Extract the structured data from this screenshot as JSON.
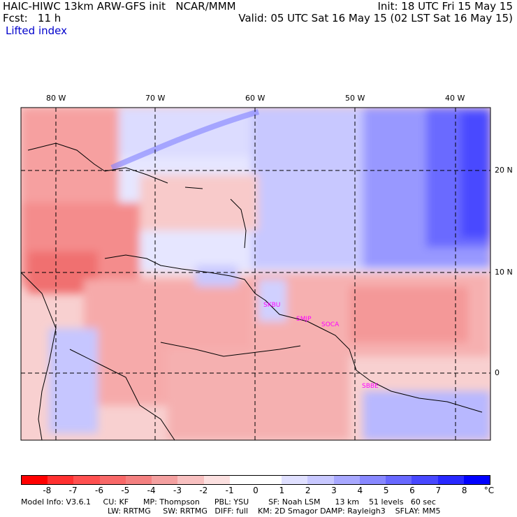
{
  "header": {
    "model": "HAIC-HIWC 13km ARW-GFS init   NCAR/MMM",
    "init": "Init: 18 UTC Fri 15 May 15",
    "fcst": "Fcst:   11 h",
    "valid": "Valid: 05 UTC Sat 16 May 15 (02 LST Sat 16 May 15)",
    "field": "Lifted index"
  },
  "map": {
    "lon_labels": [
      "80 W",
      "70 W",
      "60 W",
      "50 W",
      "40 W"
    ],
    "lat_labels": [
      "20 N",
      "10 N",
      "0"
    ],
    "stations": [
      "SKBU",
      "SMJP",
      "SOCA",
      "SBBE"
    ]
  },
  "colorbar": {
    "labels": [
      "-8",
      "-7",
      "-6",
      "-5",
      "-4",
      "-3",
      "-2",
      "-1",
      "0",
      "1",
      "2",
      "3",
      "4",
      "5",
      "6",
      "7",
      "8"
    ],
    "unit": "°C",
    "colors": [
      "#ff0000",
      "#ff2020",
      "#ff4040",
      "#f86060",
      "#f08080",
      "#f0a0a0",
      "#f8c0c0",
      "#fce0e0",
      "#ffffff",
      "#e0e0ff",
      "#c0c0ff",
      "#a0a0ff",
      "#8080ff",
      "#6060ff",
      "#4040ff",
      "#2020ff",
      "#0000ff"
    ]
  },
  "footer": {
    "line1": "Model Info: V3.6.1     CU: KF      MP: Thompson      PBL: YSU        SF: Noah LSM      13 km    51 levels   60 sec",
    "line2": "LW: RRTMG     SW: RRTMG   DIFF: full    KM: 2D Smagor DAMP: Rayleigh3    SFLAY: MM5"
  }
}
